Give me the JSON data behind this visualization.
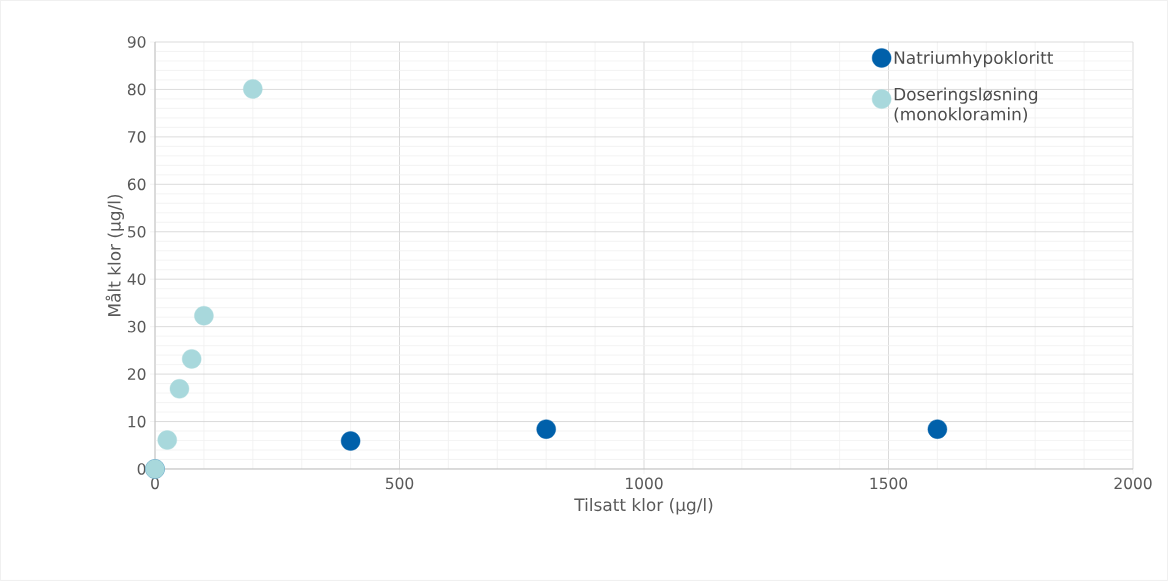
{
  "chart_data": {
    "type": "scatter",
    "xlabel": "Tilsatt klor (µg/l)",
    "ylabel": "Målt klor (µg/l)",
    "xlim": [
      0,
      2000
    ],
    "xticks": [
      0,
      500,
      1000,
      1500,
      2000
    ],
    "ylim": [
      0,
      90
    ],
    "yticks": [
      0,
      10,
      20,
      30,
      40,
      50,
      60,
      70,
      80,
      90
    ],
    "grid": true,
    "legend": "top right",
    "series": [
      {
        "name": "Natriumhypokloritt",
        "color": "#0060aa",
        "x": [
          0,
          400,
          800,
          1600
        ],
        "values": [
          0,
          5.9,
          8.4,
          8.4
        ]
      },
      {
        "name": "Doseringsløsning (monokloramin)",
        "color": "#a8d8dc",
        "x": [
          0,
          25,
          50,
          75,
          100,
          200
        ],
        "values": [
          0,
          6.1,
          16.9,
          23.2,
          32.3,
          80.1
        ]
      }
    ]
  }
}
